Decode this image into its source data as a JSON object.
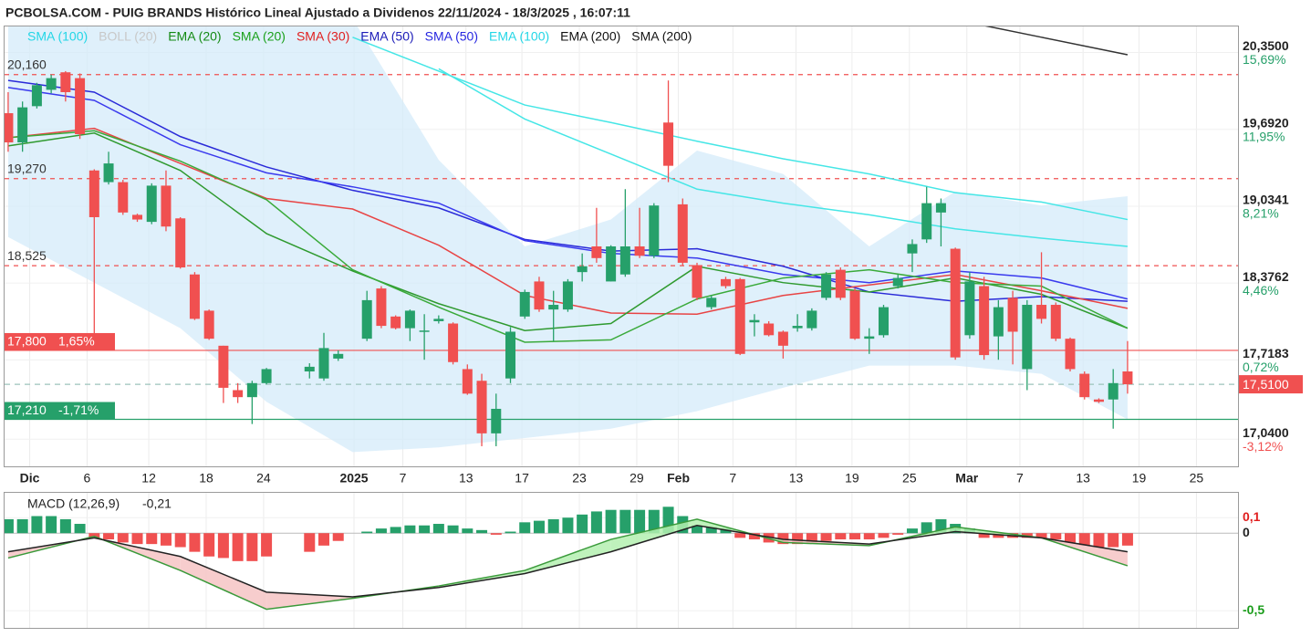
{
  "chart_data": [
    {
      "type": "candlestick",
      "title": "PCBOLSA.COM - PUIG BRANDS Histórico Lineal Ajustado a Dividenos 22/11/2024 - 18/3/2025 , 16:07:11",
      "legend": [
        {
          "label": "SMA (100)",
          "color": "#22d6e6"
        },
        {
          "label": "BOLL (20)",
          "color": "#c8c8c8"
        },
        {
          "label": "EMA (20)",
          "color": "#138a13"
        },
        {
          "label": "SMA (20)",
          "color": "#1aa01a"
        },
        {
          "label": "SMA (30)",
          "color": "#e01e1e"
        },
        {
          "label": "EMA (50)",
          "color": "#1c1cb8"
        },
        {
          "label": "SMA (50)",
          "color": "#2626e0"
        },
        {
          "label": "EMA (100)",
          "color": "#22d6e6"
        },
        {
          "label": "EMA (200)",
          "color": "#111111"
        },
        {
          "label": "SMA (200)",
          "color": "#111111"
        }
      ],
      "x": [
        0,
        1,
        2,
        3,
        4,
        5,
        6,
        7,
        8,
        9,
        10,
        11,
        12,
        13,
        14,
        15,
        16,
        17,
        18,
        21,
        22,
        23,
        25,
        26,
        27,
        28,
        29,
        30,
        31,
        32,
        33,
        34,
        35,
        36,
        37,
        38,
        39,
        40,
        41,
        42,
        43,
        44,
        45,
        46,
        47,
        48,
        49,
        50,
        51,
        52,
        53,
        54,
        55,
        56,
        57,
        58,
        59,
        60,
        61,
        62,
        63,
        64,
        65,
        66,
        67,
        68,
        69,
        70,
        71,
        72,
        73,
        74,
        75,
        76,
        77,
        78
      ],
      "open": [
        19.83,
        19.58,
        19.89,
        20.03,
        20.18,
        20.13,
        19.34,
        19.24,
        19.24,
        18.96,
        18.9,
        19.21,
        18.93,
        18.45,
        18.14,
        17.84,
        17.46,
        17.4,
        17.52,
        17.62,
        17.56,
        17.73,
        17.9,
        18.33,
        18.09,
        17.99,
        17.96,
        18.05,
        18.03,
        17.64,
        17.54,
        17.09,
        17.56,
        18.09,
        18.39,
        18.15,
        18.15,
        18.47,
        18.69,
        18.39,
        18.45,
        18.69,
        18.61,
        19.75,
        19.05,
        18.53,
        18.17,
        18.41,
        18.41,
        18.04,
        18.03,
        17.96,
        17.99,
        17.99,
        18.25,
        18.49,
        18.31,
        17.9,
        17.93,
        18.35,
        18.63,
        18.75,
        18.98,
        18.67,
        17.93,
        18.35,
        17.92,
        18.25,
        17.64,
        18.19,
        18.19,
        17.9,
        17.6,
        17.38,
        17.38,
        17.62
      ],
      "high": [
        20.01,
        19.93,
        20.09,
        20.16,
        20.19,
        20.17,
        19.35,
        19.5,
        19.26,
        18.97,
        19.23,
        19.34,
        18.94,
        18.47,
        18.15,
        17.84,
        17.52,
        17.54,
        17.65,
        17.69,
        17.95,
        17.8,
        18.31,
        18.35,
        18.1,
        18.15,
        18.11,
        18.1,
        18.04,
        17.68,
        17.6,
        17.43,
        18.0,
        18.32,
        18.43,
        18.31,
        18.41,
        18.63,
        19.02,
        18.7,
        19.18,
        19.02,
        19.06,
        20.11,
        19.1,
        18.55,
        18.27,
        18.43,
        18.42,
        18.11,
        18.05,
        17.97,
        18.11,
        18.16,
        18.47,
        18.51,
        18.33,
        17.99,
        18.19,
        18.45,
        18.75,
        19.2,
        19.1,
        18.68,
        18.47,
        18.43,
        18.23,
        18.31,
        18.23,
        18.64,
        18.21,
        17.91,
        17.62,
        17.39,
        17.64,
        17.88
      ],
      "low": [
        19.5,
        19.5,
        19.87,
        20.0,
        19.93,
        19.61,
        17.84,
        19.22,
        18.96,
        18.9,
        18.88,
        18.82,
        18.5,
        18.06,
        17.89,
        17.35,
        17.35,
        17.17,
        17.51,
        17.56,
        17.54,
        17.71,
        17.88,
        17.99,
        17.98,
        17.88,
        17.72,
        18.03,
        17.68,
        17.42,
        16.98,
        16.98,
        17.52,
        18.07,
        18.13,
        17.88,
        18.13,
        18.39,
        18.55,
        18.39,
        18.43,
        18.59,
        18.59,
        19.24,
        18.53,
        18.23,
        18.15,
        18.33,
        17.76,
        17.92,
        17.92,
        17.73,
        17.96,
        17.97,
        18.23,
        18.23,
        17.89,
        17.77,
        17.91,
        18.33,
        18.47,
        18.72,
        18.69,
        17.72,
        17.9,
        17.72,
        17.72,
        17.68,
        17.46,
        18.03,
        17.88,
        17.62,
        17.38,
        17.35,
        17.13,
        17.43
      ],
      "close": [
        19.58,
        19.88,
        20.07,
        20.13,
        20.01,
        19.65,
        18.94,
        19.4,
        18.98,
        18.92,
        19.21,
        18.86,
        18.51,
        18.07,
        17.9,
        17.48,
        17.4,
        17.52,
        17.64,
        17.66,
        17.82,
        17.77,
        18.23,
        18.01,
        17.99,
        18.14,
        17.97,
        18.07,
        17.7,
        17.43,
        17.09,
        17.3,
        17.96,
        18.3,
        18.15,
        18.19,
        18.39,
        18.52,
        18.59,
        18.69,
        18.69,
        18.61,
        19.04,
        19.38,
        18.55,
        18.25,
        18.25,
        18.35,
        17.77,
        18.06,
        17.93,
        17.84,
        18.01,
        18.14,
        18.45,
        18.25,
        17.9,
        17.92,
        18.17,
        18.42,
        18.71,
        19.06,
        19.06,
        17.74,
        18.39,
        17.76,
        18.17,
        17.96,
        18.19,
        18.07,
        17.9,
        17.64,
        17.4,
        17.36,
        17.52,
        17.51
      ],
      "up_color": "#26a06a",
      "down_color": "#f05050",
      "band": {
        "name": "BOLL (20)",
        "color": "#d4ebfa",
        "x": [
          0,
          6,
          12,
          18,
          24,
          30,
          36,
          42,
          48,
          54,
          60,
          66,
          72,
          78
        ],
        "upper": [
          21.11,
          21.11,
          21.03,
          20.79,
          20.64,
          19.43,
          18.69,
          18.92,
          19.51,
          19.31,
          18.69,
          19.16,
          19.04,
          19.12
        ],
        "lower": [
          18.77,
          18.38,
          17.99,
          17.36,
          16.93,
          16.97,
          17.05,
          17.13,
          17.28,
          17.48,
          17.67,
          17.67,
          17.6,
          17.21
        ]
      },
      "series": [
        {
          "name": "SMA (100)",
          "color": "#45e6e6",
          "x": [
            24,
            30,
            36,
            42,
            48,
            54,
            60,
            66,
            72,
            78
          ],
          "values": [
            20.48,
            20.19,
            19.9,
            19.75,
            19.59,
            19.44,
            19.31,
            19.15,
            19.07,
            18.92
          ]
        },
        {
          "name": "EMA (100)",
          "color": "#45e6e6",
          "x": [
            30,
            36,
            42,
            48,
            54,
            60,
            66,
            72,
            78
          ],
          "values": [
            20.21,
            19.78,
            19.48,
            19.18,
            19.06,
            18.96,
            18.84,
            18.76,
            18.69
          ]
        },
        {
          "name": "SMA (200)",
          "color": "#333333",
          "x": [
            68,
            72,
            78
          ],
          "values": [
            20.58,
            20.48,
            20.33
          ]
        },
        {
          "name": "EMA (50)",
          "color": "#2a2ad8",
          "x": [
            0,
            6,
            12,
            18,
            24,
            30,
            36,
            42,
            48,
            54,
            60,
            66,
            72,
            78
          ],
          "values": [
            20.11,
            20.01,
            19.63,
            19.37,
            19.17,
            19.02,
            18.75,
            18.65,
            18.67,
            18.52,
            18.3,
            18.22,
            18.26,
            18.22
          ]
        },
        {
          "name": "SMA (50)",
          "color": "#3a3aee",
          "x": [
            0,
            6,
            12,
            18,
            24,
            30,
            36,
            42,
            48,
            54,
            60,
            66,
            72,
            78
          ],
          "values": [
            20.05,
            19.94,
            19.56,
            19.32,
            19.2,
            19.06,
            18.74,
            18.63,
            18.59,
            18.45,
            18.38,
            18.48,
            18.42,
            18.24
          ]
        },
        {
          "name": "SMA (30)",
          "color": "#e84444",
          "x": [
            0,
            6,
            12,
            18,
            24,
            30,
            36,
            42,
            48,
            54,
            60,
            66,
            72,
            78
          ],
          "values": [
            19.62,
            19.7,
            19.4,
            19.1,
            19.01,
            18.7,
            18.27,
            18.12,
            18.11,
            18.27,
            18.36,
            18.45,
            18.31,
            18.16
          ]
        },
        {
          "name": "EMA (20)",
          "color": "#2f9a2f",
          "x": [
            0,
            6,
            12,
            18,
            24,
            30,
            36,
            42,
            48,
            54,
            60,
            66,
            72,
            78
          ],
          "values": [
            19.55,
            19.66,
            19.34,
            18.8,
            18.48,
            18.2,
            17.97,
            18.03,
            18.52,
            18.38,
            18.3,
            18.42,
            18.28,
            17.99
          ]
        },
        {
          "name": "SMA (20)",
          "color": "#3aaa3a",
          "x": [
            0,
            6,
            12,
            18,
            24,
            30,
            36,
            42,
            48,
            54,
            60,
            66,
            72,
            78
          ],
          "values": [
            19.62,
            19.68,
            19.42,
            19.09,
            18.49,
            18.17,
            17.87,
            17.89,
            18.24,
            18.42,
            18.49,
            18.38,
            18.35,
            17.99
          ]
        }
      ],
      "levels": [
        {
          "value": 20.16,
          "label": "20,160",
          "color": "#f05050",
          "style": "dashed"
        },
        {
          "value": 19.27,
          "label": "19,270",
          "color": "#f05050",
          "style": "dashed"
        },
        {
          "value": 18.525,
          "label": "18,525",
          "color": "#f05050",
          "style": "dashed"
        },
        {
          "value": 17.8,
          "label": "17,800",
          "percent": "1,65%",
          "color": "#f05050",
          "style": "solid"
        },
        {
          "value": 17.21,
          "label": "17,210",
          "percent": "-1,71%",
          "color": "#26a06a",
          "style": "solid"
        }
      ],
      "last_price": {
        "value": 17.51,
        "label": "17,5100",
        "color": "#f05050",
        "line_color": "#9cc4bb"
      },
      "xlim": [
        -0.25,
        85.76
      ],
      "xticks": [
        {
          "value": 1.5,
          "label": "Dic",
          "major": true
        },
        {
          "value": 5.5,
          "label": "6"
        },
        {
          "value": 9.8,
          "label": "12"
        },
        {
          "value": 13.8,
          "label": "18"
        },
        {
          "value": 17.8,
          "label": "24"
        },
        {
          "value": 24.1,
          "label": "2025",
          "major": true
        },
        {
          "value": 27.5,
          "label": "7"
        },
        {
          "value": 31.9,
          "label": "13"
        },
        {
          "value": 35.8,
          "label": "17"
        },
        {
          "value": 39.8,
          "label": "23"
        },
        {
          "value": 43.8,
          "label": "29"
        },
        {
          "value": 46.7,
          "label": "Feb",
          "major": true
        },
        {
          "value": 50.5,
          "label": "7"
        },
        {
          "value": 54.9,
          "label": "13"
        },
        {
          "value": 58.8,
          "label": "19"
        },
        {
          "value": 62.8,
          "label": "25"
        },
        {
          "value": 66.8,
          "label": "Mar",
          "major": true
        },
        {
          "value": 70.5,
          "label": "7"
        },
        {
          "value": 74.9,
          "label": "13"
        },
        {
          "value": 78.8,
          "label": "19"
        },
        {
          "value": 82.8,
          "label": "25"
        }
      ],
      "ylim": [
        16.8,
        20.58
      ],
      "yticks": [
        {
          "value": 20.35,
          "label": "20,3500"
        },
        {
          "value": 19.692,
          "label": "19,6920"
        },
        {
          "value": 19.0341,
          "label": "19,0341"
        },
        {
          "value": 18.3762,
          "label": "18,3762"
        },
        {
          "value": 17.7183,
          "label": "17,7183"
        },
        {
          "value": 17.04,
          "label": "17,0400"
        }
      ],
      "ytick_percents": [
        "15,69%",
        "11,95%",
        "8,21%",
        "4,46%",
        "0,72%",
        "-3,12%"
      ],
      "grid": true
    },
    {
      "type": "macd",
      "label": "MACD (12,26,9)",
      "current_label": "-0,21",
      "x": [
        0,
        1,
        2,
        3,
        4,
        5,
        6,
        7,
        8,
        9,
        10,
        11,
        12,
        13,
        14,
        15,
        16,
        17,
        18,
        21,
        22,
        23,
        25,
        26,
        27,
        28,
        29,
        30,
        31,
        32,
        33,
        34,
        35,
        36,
        37,
        38,
        39,
        40,
        41,
        42,
        43,
        44,
        45,
        46,
        47,
        48,
        49,
        50,
        51,
        52,
        53,
        54,
        55,
        56,
        57,
        58,
        59,
        60,
        61,
        62,
        63,
        64,
        65,
        66,
        67,
        68,
        69,
        70,
        71,
        72,
        73,
        74,
        75,
        76,
        77,
        78
      ],
      "histogram": [
        0.09,
        0.09,
        0.11,
        0.11,
        0.09,
        0.06,
        -0.03,
        -0.04,
        -0.06,
        -0.07,
        -0.07,
        -0.08,
        -0.09,
        -0.12,
        -0.15,
        -0.16,
        -0.18,
        -0.18,
        -0.15,
        -0.12,
        -0.08,
        -0.05,
        0.01,
        0.03,
        0.04,
        0.05,
        0.05,
        0.06,
        0.05,
        0.03,
        0.02,
        -0.01,
        0.01,
        0.07,
        0.08,
        0.09,
        0.1,
        0.12,
        0.14,
        0.15,
        0.15,
        0.15,
        0.15,
        0.17,
        0.11,
        0.05,
        0.04,
        0.03,
        -0.03,
        -0.04,
        -0.06,
        -0.07,
        -0.07,
        -0.06,
        -0.05,
        -0.04,
        -0.04,
        -0.04,
        -0.03,
        -0.01,
        0.03,
        0.07,
        0.09,
        0.06,
        0.03,
        -0.03,
        -0.03,
        -0.03,
        -0.03,
        -0.03,
        -0.04,
        -0.06,
        -0.08,
        -0.09,
        -0.09,
        -0.08
      ],
      "up_color": "#26a06a",
      "down_color": "#f05050",
      "line_x": [
        0,
        6,
        12,
        18,
        24,
        30,
        36,
        42,
        48,
        54,
        60,
        66,
        72,
        78
      ],
      "macd": [
        -0.16,
        -0.02,
        -0.24,
        -0.49,
        -0.42,
        -0.34,
        -0.24,
        -0.04,
        0.09,
        -0.06,
        -0.08,
        0.04,
        -0.03,
        -0.21
      ],
      "signal": [
        -0.12,
        -0.03,
        -0.15,
        -0.38,
        -0.41,
        -0.35,
        -0.26,
        -0.12,
        0.05,
        -0.04,
        -0.07,
        0.01,
        -0.03,
        -0.12
      ],
      "macd_color": "#3a9a3a",
      "signal_color": "#222222",
      "fill_up": "#b4f0b0",
      "fill_down": "#f6c4c4",
      "ylim": [
        -0.61,
        0.26
      ],
      "yticks": [
        {
          "value": 0.1,
          "label": "0,1",
          "color": "#e01e1e"
        },
        {
          "value": 0,
          "label": "0",
          "color": "#222222"
        },
        {
          "value": -0.5,
          "label": "-0,5",
          "color": "#1a9c1a"
        }
      ]
    }
  ]
}
